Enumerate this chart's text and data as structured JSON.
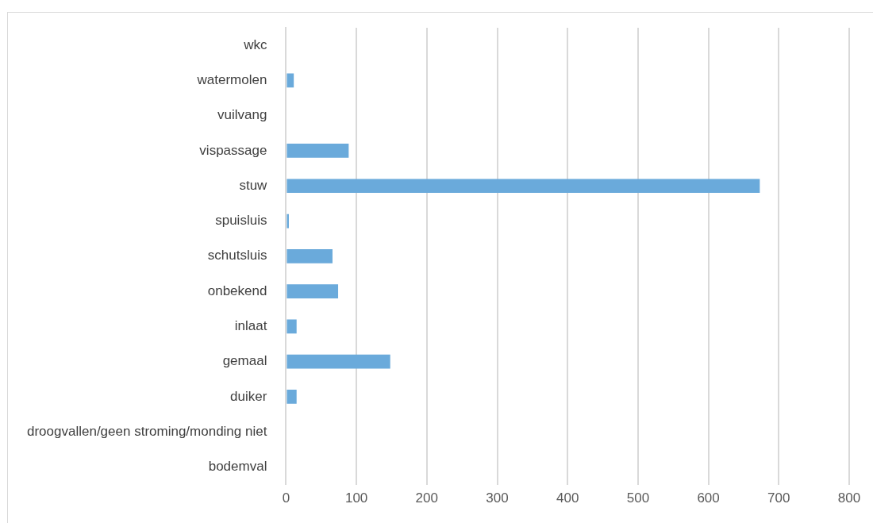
{
  "chart_data": {
    "type": "bar",
    "orientation": "horizontal",
    "categories": [
      "wkc",
      "watermolen",
      "vuilvang",
      "vispassage",
      "stuw",
      "spuisluis",
      "schutsluis",
      "onbekend",
      "inlaat",
      "gemaal",
      "duiker",
      "droogvallen/geen stroming/monding niet",
      "bodemval"
    ],
    "values": [
      0,
      11,
      0,
      89,
      673,
      4,
      66,
      74,
      15,
      148,
      15,
      0,
      0
    ],
    "color": "#6aaadb",
    "xlim": [
      0,
      800
    ],
    "xticks": [
      0,
      100,
      200,
      300,
      400,
      500,
      600,
      700,
      800
    ],
    "grid": "x",
    "legend": false
  }
}
